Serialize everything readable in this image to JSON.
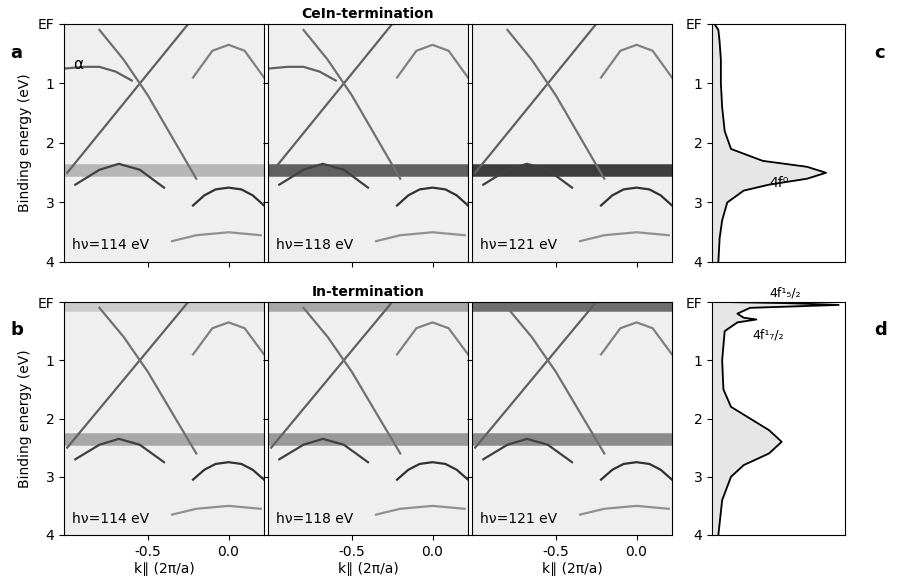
{
  "chart_data": [
    {
      "type": "line",
      "subtitle": "hν=114 eV",
      "ylabel": "Binding energy (eV)",
      "annotations": [
        "a",
        "α"
      ],
      "xlim": [
        -1.02,
        0.22
      ],
      "ylim": [
        4,
        0
      ],
      "xticks": [
        -0.5,
        0.0
      ],
      "yticks": [
        {
          "value": 0,
          "label": "EF"
        },
        1,
        2,
        3,
        4
      ],
      "tick_labels": "y",
      "series": [
        {
          "type": "band",
          "color": "#b0b0b0",
          "x": [
            -1.02,
            0.22
          ],
          "values": [
            2.45,
            2.45
          ]
        },
        {
          "color": "#303030",
          "x": [
            -0.22,
            -0.15,
            -0.08,
            0.0,
            0.08,
            0.15,
            0.22
          ],
          "values": [
            3.05,
            2.88,
            2.78,
            2.75,
            2.78,
            2.88,
            3.05
          ]
        },
        {
          "color": "#808080",
          "x": [
            -0.22,
            -0.1,
            0.0,
            0.1,
            0.22
          ],
          "values": [
            0.9,
            0.45,
            0.35,
            0.45,
            0.9
          ]
        },
        {
          "color": "#606060",
          "x": [
            -0.25,
            -0.4,
            -0.55,
            -0.7,
            -0.85,
            -1.0
          ],
          "values": [
            0.0,
            0.5,
            1.0,
            1.5,
            2.0,
            2.5
          ]
        },
        {
          "color": "#707070",
          "x": [
            -0.8,
            -0.65,
            -0.5,
            -0.35,
            -0.2
          ],
          "values": [
            0.1,
            0.6,
            1.2,
            1.9,
            2.6
          ]
        },
        {
          "color": "#606060",
          "x": [
            -1.02,
            -0.9,
            -0.8,
            -0.7,
            -0.6
          ],
          "values": [
            0.75,
            0.72,
            0.72,
            0.8,
            0.95
          ]
        },
        {
          "color": "#404040",
          "x": [
            -0.95,
            -0.8,
            -0.68,
            -0.55,
            -0.4
          ],
          "values": [
            2.7,
            2.45,
            2.35,
            2.45,
            2.75
          ]
        },
        {
          "color": "#909090",
          "x": [
            -0.35,
            -0.2,
            0.0,
            0.2
          ],
          "values": [
            3.65,
            3.55,
            3.5,
            3.55
          ]
        }
      ]
    },
    {
      "type": "line",
      "subtitle": "hν=118 eV",
      "title": "CeIn-termination",
      "xlim": [
        -1.02,
        0.22
      ],
      "ylim": [
        4,
        0
      ],
      "xticks": [
        -0.5,
        0.0
      ],
      "yticks": [
        {
          "value": 0,
          "label": "EF"
        },
        1,
        2,
        3,
        4
      ],
      "tick_labels": false,
      "series": [
        {
          "type": "band",
          "color": "#505050",
          "x": [
            -1.02,
            0.22
          ],
          "values": [
            2.45,
            2.45
          ]
        },
        {
          "color": "#303030",
          "x": [
            -0.22,
            -0.15,
            -0.08,
            0.0,
            0.08,
            0.15,
            0.22
          ],
          "values": [
            3.05,
            2.88,
            2.78,
            2.75,
            2.78,
            2.88,
            3.05
          ]
        },
        {
          "color": "#808080",
          "x": [
            -0.22,
            -0.1,
            0.0,
            0.1,
            0.22
          ],
          "values": [
            0.9,
            0.45,
            0.35,
            0.45,
            0.9
          ]
        },
        {
          "color": "#606060",
          "x": [
            -0.25,
            -0.4,
            -0.55,
            -0.7,
            -0.85,
            -1.0
          ],
          "values": [
            0.0,
            0.5,
            1.0,
            1.5,
            2.0,
            2.5
          ]
        },
        {
          "color": "#707070",
          "x": [
            -0.8,
            -0.65,
            -0.5,
            -0.35,
            -0.2
          ],
          "values": [
            0.1,
            0.6,
            1.2,
            1.9,
            2.6
          ]
        },
        {
          "color": "#606060",
          "x": [
            -1.02,
            -0.9,
            -0.8,
            -0.7,
            -0.6
          ],
          "values": [
            0.75,
            0.72,
            0.72,
            0.8,
            0.95
          ]
        },
        {
          "color": "#404040",
          "x": [
            -0.95,
            -0.8,
            -0.68,
            -0.55,
            -0.4
          ],
          "values": [
            2.7,
            2.45,
            2.35,
            2.45,
            2.75
          ]
        },
        {
          "color": "#909090",
          "x": [
            -0.35,
            -0.2,
            0.0,
            0.2
          ],
          "values": [
            3.65,
            3.55,
            3.5,
            3.55
          ]
        }
      ]
    },
    {
      "type": "line",
      "subtitle": "hν=121 eV",
      "xlim": [
        -1.02,
        0.22
      ],
      "ylim": [
        4,
        0
      ],
      "xticks": [
        -0.5,
        0.0
      ],
      "yticks": [
        {
          "value": 0,
          "label": "EF"
        },
        1,
        2,
        3,
        4
      ],
      "tick_labels": false,
      "series": [
        {
          "type": "band",
          "color": "#2a2a2a",
          "x": [
            -1.02,
            0.22
          ],
          "values": [
            2.45,
            2.45
          ]
        },
        {
          "color": "#303030",
          "x": [
            -0.22,
            -0.15,
            -0.08,
            0.0,
            0.08,
            0.15,
            0.22
          ],
          "values": [
            3.05,
            2.88,
            2.78,
            2.75,
            2.78,
            2.88,
            3.05
          ]
        },
        {
          "color": "#808080",
          "x": [
            -0.22,
            -0.1,
            0.0,
            0.1,
            0.22
          ],
          "values": [
            0.9,
            0.45,
            0.35,
            0.45,
            0.9
          ]
        },
        {
          "color": "#606060",
          "x": [
            -0.25,
            -0.4,
            -0.55,
            -0.7,
            -0.85,
            -1.0
          ],
          "values": [
            0.0,
            0.5,
            1.0,
            1.5,
            2.0,
            2.5
          ]
        },
        {
          "color": "#707070",
          "x": [
            -0.8,
            -0.65,
            -0.5,
            -0.35,
            -0.2
          ],
          "values": [
            0.1,
            0.6,
            1.2,
            1.9,
            2.6
          ]
        },
        {
          "color": "#404040",
          "x": [
            -0.95,
            -0.8,
            -0.68,
            -0.55,
            -0.4
          ],
          "values": [
            2.7,
            2.45,
            2.35,
            2.45,
            2.75
          ]
        },
        {
          "color": "#909090",
          "x": [
            -0.35,
            -0.2,
            0.0,
            0.2
          ],
          "values": [
            3.65,
            3.55,
            3.5,
            3.55
          ]
        }
      ]
    },
    {
      "type": "line",
      "subtitle": "hν=114 eV",
      "ylabel": "Binding energy (eV)",
      "xlabel": "k∥ (2π/a)",
      "annotations": [
        "b"
      ],
      "xlim": [
        -1.02,
        0.22
      ],
      "ylim": [
        4,
        0
      ],
      "xticks": [
        -0.5,
        0.0
      ],
      "yticks": [
        {
          "value": 0,
          "label": "EF"
        },
        1,
        2,
        3,
        4
      ],
      "tick_labels": true,
      "series": [
        {
          "type": "band",
          "color": "#c8c8c8",
          "x": [
            -1.02,
            0.22
          ],
          "values": [
            0.05,
            0.05
          ]
        },
        {
          "type": "band",
          "color": "#a0a0a0",
          "x": [
            -1.02,
            0.22
          ],
          "values": [
            2.35,
            2.35
          ]
        },
        {
          "color": "#303030",
          "x": [
            -0.22,
            -0.15,
            -0.08,
            0.0,
            0.08,
            0.15,
            0.22
          ],
          "values": [
            3.05,
            2.88,
            2.78,
            2.75,
            2.78,
            2.88,
            3.05
          ]
        },
        {
          "color": "#808080",
          "x": [
            -0.22,
            -0.1,
            0.0,
            0.1,
            0.22
          ],
          "values": [
            0.9,
            0.45,
            0.35,
            0.45,
            0.9
          ]
        },
        {
          "color": "#606060",
          "x": [
            -0.25,
            -0.4,
            -0.55,
            -0.7,
            -0.85,
            -1.0
          ],
          "values": [
            0.0,
            0.5,
            1.0,
            1.5,
            2.0,
            2.5
          ]
        },
        {
          "color": "#707070",
          "x": [
            -0.8,
            -0.65,
            -0.5,
            -0.35,
            -0.2
          ],
          "values": [
            0.1,
            0.6,
            1.2,
            1.9,
            2.6
          ]
        },
        {
          "color": "#404040",
          "x": [
            -0.95,
            -0.8,
            -0.68,
            -0.55,
            -0.4
          ],
          "values": [
            2.7,
            2.45,
            2.35,
            2.45,
            2.75
          ]
        },
        {
          "color": "#909090",
          "x": [
            -0.35,
            -0.2,
            0.0,
            0.2
          ],
          "values": [
            3.65,
            3.55,
            3.5,
            3.55
          ]
        }
      ]
    },
    {
      "type": "line",
      "subtitle": "hν=118 eV",
      "title": "In-termination",
      "xlabel": "k∥ (2π/a)",
      "xlim": [
        -1.02,
        0.22
      ],
      "ylim": [
        4,
        0
      ],
      "xticks": [
        -0.5,
        0.0
      ],
      "yticks": [
        {
          "value": 0,
          "label": "EF"
        },
        1,
        2,
        3,
        4
      ],
      "tick_labels": "x",
      "series": [
        {
          "type": "band",
          "color": "#a0a0a0",
          "x": [
            -1.02,
            0.22
          ],
          "values": [
            0.05,
            0.05
          ]
        },
        {
          "type": "band",
          "color": "#909090",
          "x": [
            -1.02,
            0.22
          ],
          "values": [
            2.35,
            2.35
          ]
        },
        {
          "color": "#303030",
          "x": [
            -0.22,
            -0.15,
            -0.08,
            0.0,
            0.08,
            0.15,
            0.22
          ],
          "values": [
            3.05,
            2.88,
            2.78,
            2.75,
            2.78,
            2.88,
            3.05
          ]
        },
        {
          "color": "#808080",
          "x": [
            -0.22,
            -0.1,
            0.0,
            0.1,
            0.22
          ],
          "values": [
            0.9,
            0.45,
            0.35,
            0.45,
            0.9
          ]
        },
        {
          "color": "#606060",
          "x": [
            -0.25,
            -0.4,
            -0.55,
            -0.7,
            -0.85,
            -1.0
          ],
          "values": [
            0.0,
            0.5,
            1.0,
            1.5,
            2.0,
            2.5
          ]
        },
        {
          "color": "#707070",
          "x": [
            -0.8,
            -0.65,
            -0.5,
            -0.35,
            -0.2
          ],
          "values": [
            0.1,
            0.6,
            1.2,
            1.9,
            2.6
          ]
        },
        {
          "color": "#404040",
          "x": [
            -0.95,
            -0.8,
            -0.68,
            -0.55,
            -0.4
          ],
          "values": [
            2.7,
            2.45,
            2.35,
            2.45,
            2.75
          ]
        },
        {
          "color": "#909090",
          "x": [
            -0.35,
            -0.2,
            0.0,
            0.2
          ],
          "values": [
            3.65,
            3.55,
            3.5,
            3.55
          ]
        }
      ]
    },
    {
      "type": "line",
      "subtitle": "hν=121 eV",
      "xlabel": "k∥ (2π/a)",
      "xlim": [
        -1.02,
        0.22
      ],
      "ylim": [
        4,
        0
      ],
      "xticks": [
        -0.5,
        0.0
      ],
      "yticks": [
        {
          "value": 0,
          "label": "EF"
        },
        1,
        2,
        3,
        4
      ],
      "tick_labels": "x",
      "series": [
        {
          "type": "band",
          "color": "#606060",
          "x": [
            -1.02,
            0.22
          ],
          "values": [
            0.05,
            0.05
          ]
        },
        {
          "type": "band",
          "color": "#808080",
          "x": [
            -1.02,
            0.22
          ],
          "values": [
            2.35,
            2.35
          ]
        },
        {
          "color": "#303030",
          "x": [
            -0.22,
            -0.15,
            -0.08,
            0.0,
            0.08,
            0.15,
            0.22
          ],
          "values": [
            3.05,
            2.88,
            2.78,
            2.75,
            2.78,
            2.88,
            3.05
          ]
        },
        {
          "color": "#808080",
          "x": [
            -0.22,
            -0.1,
            0.0,
            0.1,
            0.22
          ],
          "values": [
            0.9,
            0.45,
            0.35,
            0.45,
            0.9
          ]
        },
        {
          "color": "#606060",
          "x": [
            -0.25,
            -0.4,
            -0.55,
            -0.7,
            -0.85,
            -1.0
          ],
          "values": [
            0.0,
            0.5,
            1.0,
            1.5,
            2.0,
            2.5
          ]
        },
        {
          "color": "#707070",
          "x": [
            -0.8,
            -0.65,
            -0.5,
            -0.35,
            -0.2
          ],
          "values": [
            0.1,
            0.6,
            1.2,
            1.9,
            2.6
          ]
        },
        {
          "color": "#404040",
          "x": [
            -0.95,
            -0.8,
            -0.68,
            -0.55,
            -0.4
          ],
          "values": [
            2.7,
            2.45,
            2.35,
            2.45,
            2.75
          ]
        },
        {
          "color": "#909090",
          "x": [
            -0.35,
            -0.2,
            0.0,
            0.2
          ],
          "values": [
            3.65,
            3.55,
            3.5,
            3.55
          ]
        }
      ]
    },
    {
      "type": "area",
      "orientation": "horizontal",
      "annotations": [
        "c",
        "4f⁰"
      ],
      "color": "#e6e6e6",
      "xlim": [
        0,
        1.05
      ],
      "ylim": [
        4,
        0
      ],
      "xticks": [],
      "yticks": [
        {
          "value": 0,
          "label": "EF"
        },
        1,
        2,
        3,
        4
      ],
      "tick_labels": "y",
      "x": [
        0,
        0.1,
        0.3,
        0.6,
        1.0,
        1.4,
        1.8,
        2.1,
        2.3,
        2.4,
        2.5,
        2.6,
        2.7,
        2.8,
        3.0,
        3.3,
        3.6,
        4.0
      ],
      "values": [
        0.02,
        0.05,
        0.06,
        0.07,
        0.07,
        0.08,
        0.1,
        0.15,
        0.4,
        0.75,
        0.9,
        0.75,
        0.45,
        0.25,
        0.12,
        0.08,
        0.06,
        0.05
      ]
    },
    {
      "type": "area",
      "orientation": "horizontal",
      "annotations": [
        "d",
        "4f¹₅/₂",
        "4f¹₇/₂"
      ],
      "color": "#e6e6e6",
      "xlim": [
        0,
        1.05
      ],
      "ylim": [
        4,
        0
      ],
      "xticks": [],
      "yticks": [
        {
          "value": 0,
          "label": "EF"
        },
        1,
        2,
        3,
        4
      ],
      "tick_labels": "y",
      "x": [
        0,
        0.02,
        0.05,
        0.1,
        0.2,
        0.27,
        0.3,
        0.35,
        0.5,
        1.0,
        1.5,
        1.8,
        2.0,
        2.2,
        2.4,
        2.6,
        2.8,
        3.0,
        3.4,
        4.0
      ],
      "values": [
        0.1,
        0.6,
        1.0,
        0.3,
        0.2,
        0.25,
        0.35,
        0.2,
        0.1,
        0.08,
        0.09,
        0.15,
        0.3,
        0.45,
        0.55,
        0.45,
        0.25,
        0.15,
        0.08,
        0.05
      ]
    }
  ]
}
